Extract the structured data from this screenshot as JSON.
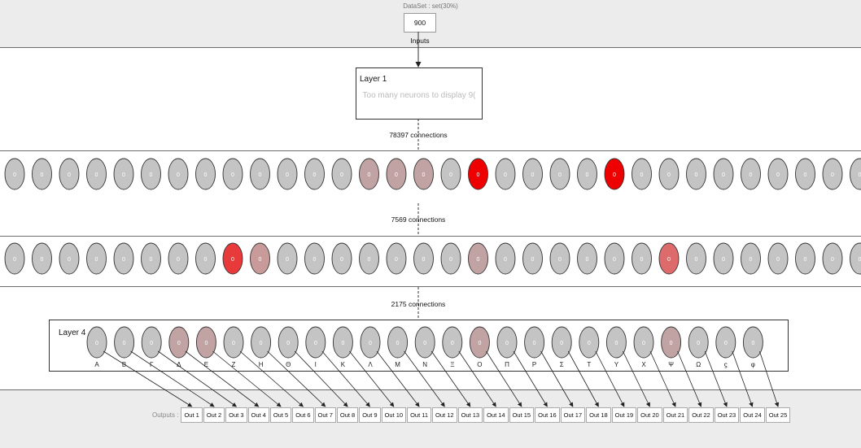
{
  "dataset": {
    "label": "DataSet : set(30%)",
    "inputs_label": "900 Inputs"
  },
  "layer1": {
    "title": "Layer 1",
    "message": "Too many neurons to display 9("
  },
  "connections": [
    "78397 connections",
    "7569 connections",
    "2175 connections"
  ],
  "layer2": {
    "neuron_value": "0",
    "colors": [
      "#c4c4c4",
      "#c4c4c4",
      "#c4c4c4",
      "#c4c4c4",
      "#c4c4c4",
      "#c4c4c4",
      "#c4c4c4",
      "#c4c4c4",
      "#c4c4c4",
      "#c4c4c4",
      "#c4c4c4",
      "#c4c4c4",
      "#c4c4c4",
      "#c2a3a3",
      "#c2a3a3",
      "#c2a3a3",
      "#c4c4c4",
      "#ee0000",
      "#c4c4c4",
      "#c4c4c4",
      "#c4c4c4",
      "#c4c4c4",
      "#ee0000",
      "#c4c4c4",
      "#c4c4c4",
      "#c4c4c4",
      "#c4c4c4",
      "#c4c4c4",
      "#c4c4c4",
      "#c4c4c4",
      "#c4c4c4",
      "#c4c4c4"
    ]
  },
  "layer3": {
    "neuron_value": "0",
    "colors": [
      "#c4c4c4",
      "#c4c4c4",
      "#c4c4c4",
      "#c4c4c4",
      "#c4c4c4",
      "#c4c4c4",
      "#c4c4c4",
      "#c4c4c4",
      "#e83a3a",
      "#c99a9a",
      "#c4c4c4",
      "#c4c4c4",
      "#c4c4c4",
      "#c4c4c4",
      "#c4c4c4",
      "#c4c4c4",
      "#c4c4c4",
      "#c2a3a3",
      "#c4c4c4",
      "#c4c4c4",
      "#c4c4c4",
      "#c4c4c4",
      "#c4c4c4",
      "#c4c4c4",
      "#dd6b6b",
      "#c4c4c4",
      "#c4c4c4",
      "#c4c4c4",
      "#c4c4c4",
      "#c4c4c4",
      "#c4c4c4",
      "#c4c4c4"
    ]
  },
  "layer4": {
    "title": "Layer 4",
    "neuron_value": "0",
    "letters": [
      "Α",
      "Β",
      "Γ",
      "Δ",
      "Ε",
      "Ζ",
      "Η",
      "Θ",
      "Ι",
      "Κ",
      "Λ",
      "Μ",
      "Ν",
      "Ξ",
      "Ο",
      "Π",
      "Ρ",
      "Σ",
      "Τ",
      "Υ",
      "Χ",
      "Ψ",
      "Ω",
      "ϛ",
      "φ"
    ],
    "colors": [
      "#c4c4c4",
      "#c4c4c4",
      "#c4c4c4",
      "#c2a3a3",
      "#c2a3a3",
      "#c4c4c4",
      "#c4c4c4",
      "#c4c4c4",
      "#c4c4c4",
      "#c4c4c4",
      "#c4c4c4",
      "#c4c4c4",
      "#c4c4c4",
      "#c4c4c4",
      "#c2a3a3",
      "#c4c4c4",
      "#c4c4c4",
      "#c4c4c4",
      "#c4c4c4",
      "#c4c4c4",
      "#c4c4c4",
      "#c2a3a3",
      "#c4c4c4",
      "#c4c4c4",
      "#c4c4c4"
    ]
  },
  "outputs": {
    "label": "Outputs :",
    "items": [
      "Out 1",
      "Out 2",
      "Out 3",
      "Out 4",
      "Out 5",
      "Out 6",
      "Out 7",
      "Out 8",
      "Out 9",
      "Out 10",
      "Out 11",
      "Out 12",
      "Out 13",
      "Out 14",
      "Out 15",
      "Out 16",
      "Out 17",
      "Out 18",
      "Out 19",
      "Out 20",
      "Out 21",
      "Out 22",
      "Out 23",
      "Out 24",
      "Out 25"
    ]
  }
}
